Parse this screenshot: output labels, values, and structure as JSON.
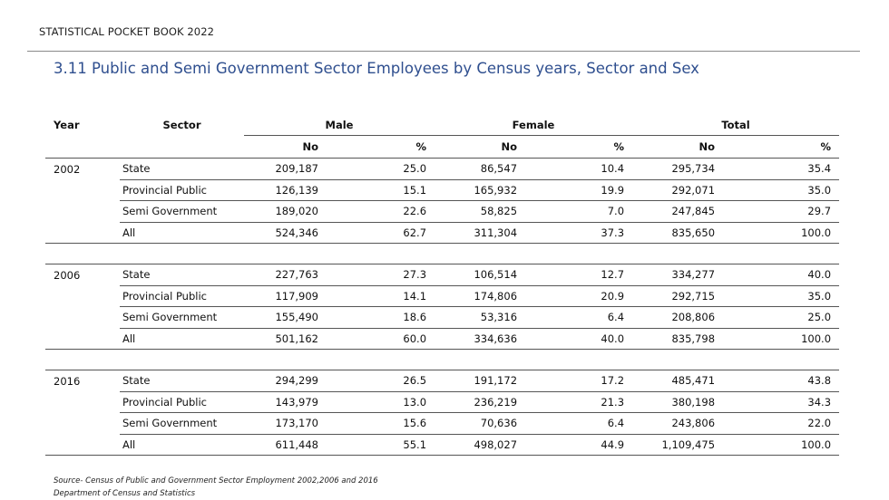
{
  "header": {
    "book_title": "STATISTICAL POCKET BOOK 2022",
    "table_title": "3.11  Public and Semi Government Sector Employees by Census years, Sector and Sex"
  },
  "table": {
    "col_year": "Year",
    "col_sector": "Sector",
    "groups": [
      "Male",
      "Female",
      "Total"
    ],
    "sub_no": "No",
    "sub_pct": "%",
    "blocks": [
      {
        "year": "2002",
        "rows": [
          {
            "sector": "State",
            "male_no": "209,187",
            "male_pct": "25.0",
            "female_no": "86,547",
            "female_pct": "10.4",
            "total_no": "295,734",
            "total_pct": "35.4"
          },
          {
            "sector": "Provincial Public",
            "male_no": "126,139",
            "male_pct": "15.1",
            "female_no": "165,932",
            "female_pct": "19.9",
            "total_no": "292,071",
            "total_pct": "35.0"
          },
          {
            "sector": "Semi Government",
            "male_no": "189,020",
            "male_pct": "22.6",
            "female_no": "58,825",
            "female_pct": "7.0",
            "total_no": "247,845",
            "total_pct": "29.7"
          },
          {
            "sector": "All",
            "male_no": "524,346",
            "male_pct": "62.7",
            "female_no": "311,304",
            "female_pct": "37.3",
            "total_no": "835,650",
            "total_pct": "100.0"
          }
        ]
      },
      {
        "year": "2006",
        "rows": [
          {
            "sector": "State",
            "male_no": "227,763",
            "male_pct": "27.3",
            "female_no": "106,514",
            "female_pct": "12.7",
            "total_no": "334,277",
            "total_pct": "40.0"
          },
          {
            "sector": "Provincial Public",
            "male_no": "117,909",
            "male_pct": "14.1",
            "female_no": "174,806",
            "female_pct": "20.9",
            "total_no": "292,715",
            "total_pct": "35.0"
          },
          {
            "sector": "Semi Government",
            "male_no": "155,490",
            "male_pct": "18.6",
            "female_no": "53,316",
            "female_pct": "6.4",
            "total_no": "208,806",
            "total_pct": "25.0"
          },
          {
            "sector": "All",
            "male_no": "501,162",
            "male_pct": "60.0",
            "female_no": "334,636",
            "female_pct": "40.0",
            "total_no": "835,798",
            "total_pct": "100.0"
          }
        ]
      },
      {
        "year": "2016",
        "rows": [
          {
            "sector": "State",
            "male_no": "294,299",
            "male_pct": "26.5",
            "female_no": "191,172",
            "female_pct": "17.2",
            "total_no": "485,471",
            "total_pct": "43.8"
          },
          {
            "sector": "Provincial Public",
            "male_no": "143,979",
            "male_pct": "13.0",
            "female_no": "236,219",
            "female_pct": "21.3",
            "total_no": "380,198",
            "total_pct": "34.3"
          },
          {
            "sector": "Semi Government",
            "male_no": "173,170",
            "male_pct": "15.6",
            "female_no": "70,636",
            "female_pct": "6.4",
            "total_no": "243,806",
            "total_pct": "22.0"
          },
          {
            "sector": "All",
            "male_no": "611,448",
            "male_pct": "55.1",
            "female_no": "498,027",
            "female_pct": "44.9",
            "total_no": "1,109,475",
            "total_pct": "100.0"
          }
        ]
      }
    ]
  },
  "footer": {
    "source_line1": "Source-  Census of Public and Government Sector Employment 2002,2006 and 2016",
    "source_line2": "Department of Census and Statistics"
  },
  "colors": {
    "title": "#2f4f8f",
    "rule": "#8a8a8a",
    "table_line": "#555555"
  }
}
